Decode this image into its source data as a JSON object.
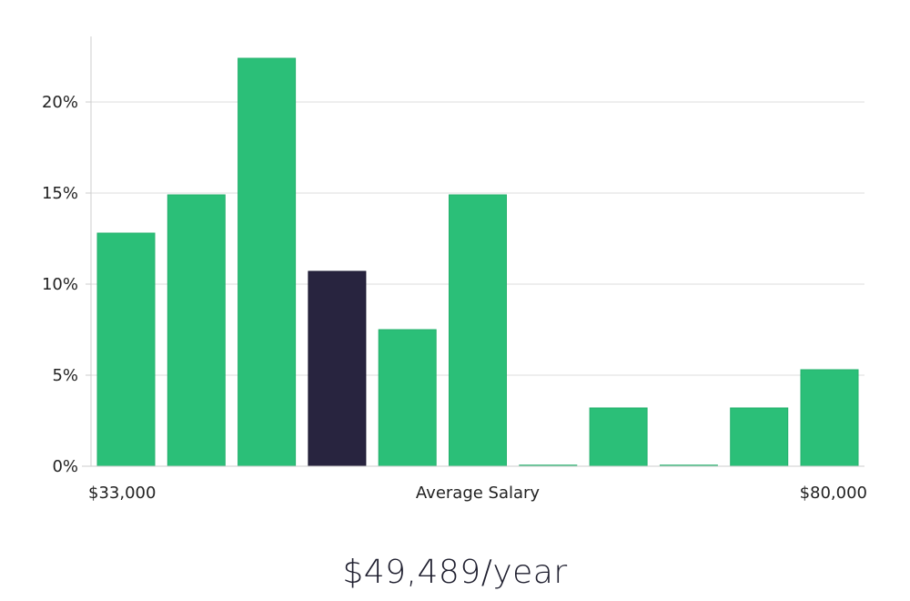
{
  "chart_data": {
    "type": "bar",
    "title": "",
    "xlabel": "Average Salary",
    "ylabel": "",
    "x_range_labels": {
      "min": "$33,000",
      "max": "$80,000"
    },
    "y_ticks": [
      "0%",
      "5%",
      "10%",
      "15%",
      "20%"
    ],
    "ylim": [
      0,
      23.5
    ],
    "values": [
      12.8,
      14.9,
      22.4,
      10.7,
      7.5,
      14.9,
      0.05,
      3.2,
      0.05,
      3.2,
      5.3
    ],
    "highlight_index": 3,
    "colors": {
      "bar": "#2bbf78",
      "highlight": "#28243f",
      "grid": "#dcdcdc",
      "axis": "#cccccc"
    }
  },
  "footer": {
    "salary": "$49,489/year"
  }
}
